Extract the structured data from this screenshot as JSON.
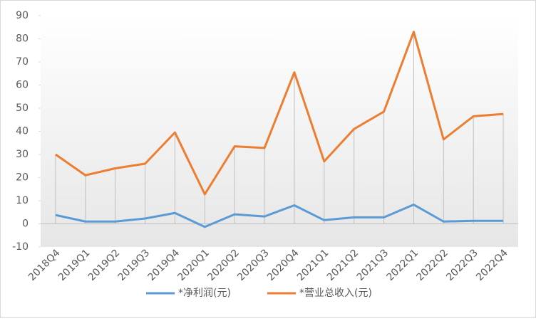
{
  "chart_data": {
    "type": "line",
    "categories": [
      "2018Q4",
      "2019Q1",
      "2019Q2",
      "2019Q3",
      "2019Q4",
      "2020Q1",
      "2020Q2",
      "2020Q3",
      "2020Q4",
      "2021Q1",
      "2021Q2",
      "2021Q3",
      "2022Q1",
      "2022Q2",
      "2022Q3",
      "2022Q4"
    ],
    "series": [
      {
        "name": "*净利润(元)",
        "color": "#5b9bd5",
        "values": [
          3.8,
          1,
          1,
          2.3,
          4.7,
          -1.3,
          4.1,
          3.2,
          8,
          1.6,
          2.8,
          2.8,
          8.3,
          1,
          1.3,
          1.3
        ]
      },
      {
        "name": "*营业总收入(元)",
        "color": "#ed7d31",
        "values": [
          30,
          21,
          24,
          26,
          39.5,
          12.8,
          33.5,
          32.8,
          65.5,
          27,
          41,
          48.5,
          83,
          36.5,
          46.5,
          47.5
        ]
      }
    ],
    "ylim": [
      -10,
      90
    ],
    "yticks": [
      -10,
      0,
      10,
      20,
      30,
      40,
      50,
      60,
      70,
      80,
      90
    ],
    "drop_lines": true,
    "legend": "bottom"
  }
}
